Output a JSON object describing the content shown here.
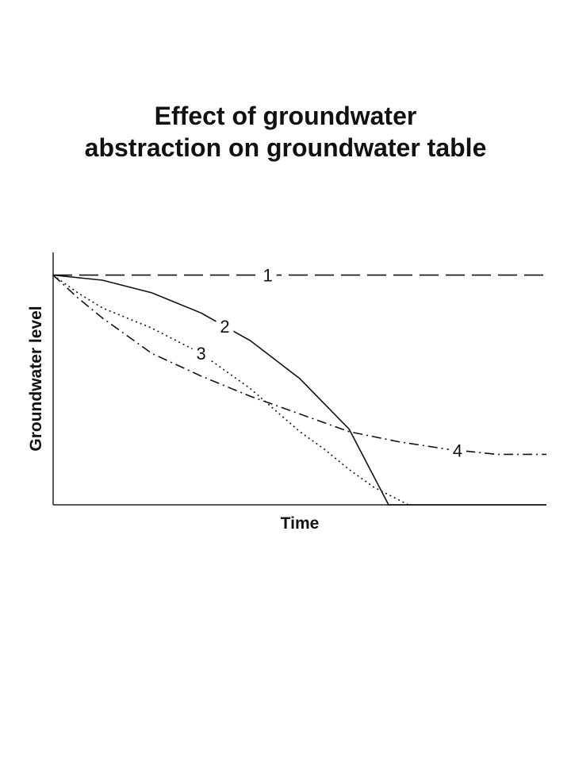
{
  "chart_data": {
    "type": "line",
    "title": [
      "Effect of groundwater",
      "abstraction on groundwater table"
    ],
    "xlabel": "Time",
    "ylabel": "Groundwater level",
    "xlim": [
      0,
      1
    ],
    "ylim": [
      0,
      1
    ],
    "grid": false,
    "legend": "none",
    "series": [
      {
        "name": "1",
        "style": "dashed",
        "x": [
          0,
          1
        ],
        "y": [
          0.91,
          0.91
        ]
      },
      {
        "name": "2",
        "style": "solid",
        "x": [
          0,
          0.1,
          0.2,
          0.3,
          0.4,
          0.5,
          0.6,
          0.68,
          0.755,
          1.0
        ],
        "y": [
          0.91,
          0.89,
          0.84,
          0.76,
          0.65,
          0.5,
          0.3,
          0.0,
          0.0,
          0.0
        ]
      },
      {
        "name": "3",
        "style": "dotted",
        "x": [
          0,
          0.05,
          0.1,
          0.15,
          0.2,
          0.3,
          0.4,
          0.5,
          0.55,
          0.6,
          0.65,
          0.7,
          0.72
        ],
        "y": [
          0.91,
          0.84,
          0.78,
          0.74,
          0.7,
          0.6,
          0.46,
          0.29,
          0.22,
          0.14,
          0.07,
          0.02,
          0.0
        ]
      },
      {
        "name": "4",
        "style": "dashdot",
        "x": [
          0,
          0.05,
          0.1,
          0.15,
          0.2,
          0.3,
          0.4,
          0.5,
          0.6,
          0.7,
          0.8,
          0.9,
          1.0
        ],
        "y": [
          0.91,
          0.82,
          0.74,
          0.67,
          0.6,
          0.51,
          0.43,
          0.36,
          0.29,
          0.25,
          0.22,
          0.2,
          0.2
        ]
      }
    ],
    "annotations": [
      {
        "text": "1",
        "series": "1"
      },
      {
        "text": "2",
        "series": "2"
      },
      {
        "text": "3",
        "series": "3"
      },
      {
        "text": "4",
        "series": "4"
      }
    ]
  }
}
